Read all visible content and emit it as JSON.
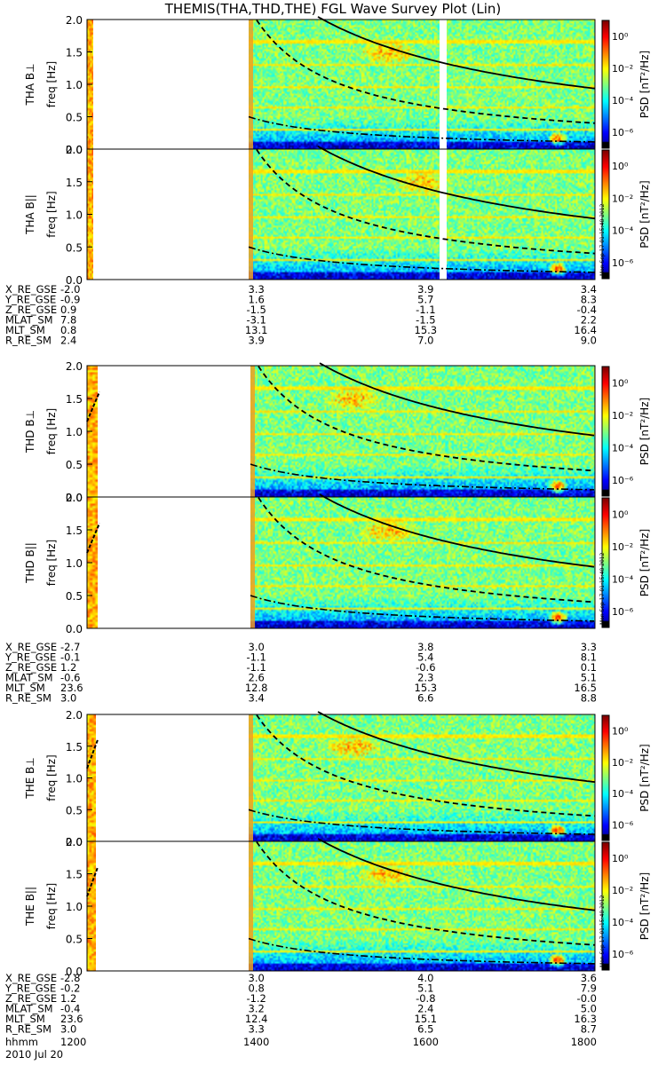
{
  "title": "THEMIS(THA,THD,THE) FGL Wave Survey Plot (Lin)",
  "stamp": "Mon Sep 17 01:15:48 2012",
  "colorbar": {
    "label": "PSD [nT²/Hz]",
    "ticks": [
      "10⁰",
      "10⁻²",
      "10⁻⁴",
      "10⁻⁶"
    ],
    "tick_exponents": [
      0,
      -2,
      -4,
      -6
    ],
    "range_exponents": [
      -7,
      1
    ]
  },
  "ephemeris_labels": [
    "X_RE_GSE",
    "Y_RE_GSE",
    "Z_RE_GSE",
    "MLAT_SM",
    "MLT_SM",
    "R_RE_SM"
  ],
  "time_axis": {
    "labels": [
      "1200",
      "1400",
      "1600",
      "1800"
    ],
    "axis_label": "hhmm",
    "date": "2010 Jul 20"
  },
  "chart_data": [
    {
      "type": "heatmap",
      "probe": "THA",
      "panels": [
        {
          "ylabel": "THA B⊥",
          "ylabel2": "freq [Hz]",
          "yticks": [
            "2.0",
            "1.5",
            "1.0",
            "0.5",
            "0.0"
          ],
          "ylim": [
            0,
            2
          ]
        },
        {
          "ylabel": "THA B||",
          "ylabel2": "freq [Hz]",
          "yticks": [
            "2.0",
            "1.5",
            "1.0",
            "0.5",
            "0.0"
          ],
          "ylim": [
            0,
            2
          ]
        }
      ],
      "ephemeris": [
        [
          "-2.0",
          "3.3",
          "3.9",
          "3.4"
        ],
        [
          "-0.9",
          "1.6",
          "5.7",
          "8.3"
        ],
        [
          "0.9",
          "-1.5",
          "-1.1",
          "-0.4"
        ],
        [
          "7.8",
          "-3.1",
          "-1.5",
          "2.2"
        ],
        [
          "0.8",
          "13.1",
          "15.3",
          "16.4"
        ],
        [
          "2.4",
          "3.9",
          "7.0",
          "9.0"
        ]
      ]
    },
    {
      "type": "heatmap",
      "probe": "THD",
      "panels": [
        {
          "ylabel": "THD B⊥",
          "ylabel2": "freq [Hz]",
          "yticks": [
            "2.0",
            "1.5",
            "1.0",
            "0.5",
            "0.0"
          ],
          "ylim": [
            0,
            2
          ]
        },
        {
          "ylabel": "THD B||",
          "ylabel2": "freq [Hz]",
          "yticks": [
            "2.0",
            "1.5",
            "1.0",
            "0.5",
            "0.0"
          ],
          "ylim": [
            0,
            2
          ]
        }
      ],
      "ephemeris": [
        [
          "-2.7",
          "3.0",
          "3.8",
          "3.3"
        ],
        [
          "-0.1",
          "-1.1",
          "5.4",
          "8.1"
        ],
        [
          "1.2",
          "-1.1",
          "-0.6",
          "0.1"
        ],
        [
          "-0.6",
          "2.6",
          "2.3",
          "5.1"
        ],
        [
          "23.6",
          "12.8",
          "15.3",
          "16.5"
        ],
        [
          "3.0",
          "3.4",
          "6.6",
          "8.8"
        ]
      ]
    },
    {
      "type": "heatmap",
      "probe": "THE",
      "panels": [
        {
          "ylabel": "THE B⊥",
          "ylabel2": "freq [Hz]",
          "yticks": [
            "2.0",
            "1.5",
            "1.0",
            "0.5",
            "0.0"
          ],
          "ylim": [
            0,
            2
          ]
        },
        {
          "ylabel": "THE B||",
          "ylabel2": "freq [Hz]",
          "yticks": [
            "2.0",
            "1.5",
            "1.0",
            "0.5",
            "0.0"
          ],
          "ylim": [
            0,
            2
          ]
        }
      ],
      "ephemeris": [
        [
          "-2.8",
          "3.0",
          "4.0",
          "3.6"
        ],
        [
          "-0.2",
          "0.8",
          "5.1",
          "7.9"
        ],
        [
          "1.2",
          "-1.2",
          "-0.8",
          "-0.0"
        ],
        [
          "-0.4",
          "3.2",
          "2.4",
          "5.0"
        ],
        [
          "23.6",
          "12.4",
          "15.1",
          "16.3"
        ],
        [
          "3.0",
          "3.3",
          "6.5",
          "8.7"
        ]
      ]
    }
  ]
}
